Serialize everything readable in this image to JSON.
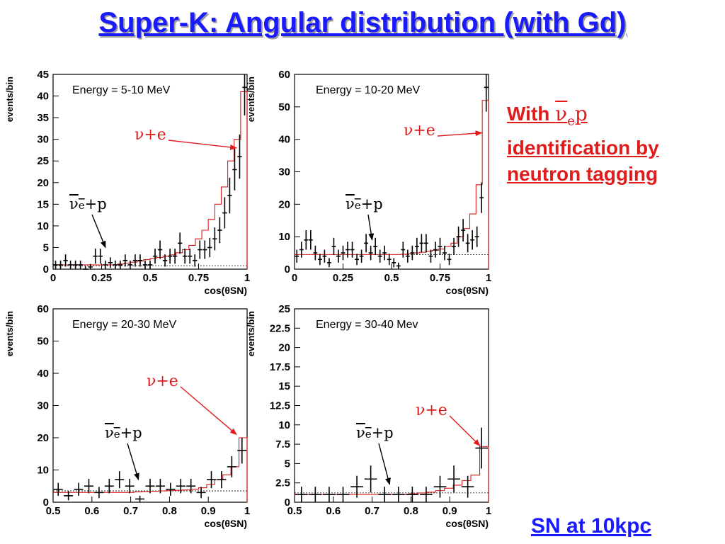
{
  "title": "Super-K: Angular distribution (with Gd)",
  "side_note": {
    "with_label": "With",
    "nu_symbol": "ν",
    "nu_subscript": "e",
    "nu_suffix": "p",
    "line2": "identification by",
    "line3": "neutron tagging"
  },
  "sn_note": "SN at 10kpc",
  "colors": {
    "title": "#1a1aff",
    "accent": "#e01b1b",
    "model": "#e01b1b",
    "data": "#000000"
  },
  "chart_data": [
    {
      "type": "histogram",
      "panel": "top-left",
      "energy_label": "Energy = 5-10 MeV",
      "xlabel": "cos(θSN)",
      "ylabel": "events/bin",
      "xlim": [
        0,
        1
      ],
      "ylim": [
        0,
        45
      ],
      "xticks": [
        "0",
        "0.25",
        "0.5",
        "0.75",
        "1"
      ],
      "xtick_values": [
        0,
        0.25,
        0.5,
        0.75,
        1
      ],
      "yticks": [
        "0",
        "5",
        "10",
        "15",
        "20",
        "25",
        "30",
        "35",
        "40",
        "45"
      ],
      "ytick_values": [
        0,
        5,
        10,
        15,
        20,
        25,
        30,
        35,
        40,
        45
      ],
      "baseline": 0.8,
      "ann_ve": {
        "text": "ν+e",
        "xv": 0.96,
        "yv": 28
      },
      "ann_vp": {
        "text": "+p",
        "xv": 0.27,
        "yv": 5
      },
      "hist": [
        1,
        1,
        1,
        1,
        1,
        1,
        1,
        1,
        1,
        1,
        1.2,
        1.4,
        1.6,
        1.9,
        2.2,
        2.5,
        2.7,
        3,
        3.3,
        3.8,
        4.5,
        5.5,
        7,
        9,
        11.5,
        15,
        19,
        25,
        30,
        41
      ],
      "points": [
        1,
        1,
        2,
        1,
        1,
        1,
        0,
        0.5,
        3,
        3,
        1,
        1.5,
        1,
        1,
        2,
        1,
        2,
        2,
        1,
        1,
        3,
        4.5,
        2,
        3,
        3,
        6,
        3,
        3,
        2,
        4.5,
        4.5,
        5,
        7,
        9,
        13,
        17,
        23,
        26,
        42
      ]
    },
    {
      "type": "histogram",
      "panel": "top-right",
      "energy_label": "Energy = 10-20 MeV",
      "xlabel": "cos(θSN)",
      "ylabel": "events/bin",
      "xlim": [
        0,
        1
      ],
      "ylim": [
        0,
        60
      ],
      "xticks": [
        "0",
        "0.25",
        "0.5",
        "0.75",
        "1"
      ],
      "xtick_values": [
        0,
        0.25,
        0.5,
        0.75,
        1
      ],
      "yticks": [
        "0",
        "10",
        "20",
        "30",
        "40",
        "50",
        "60"
      ],
      "ytick_values": [
        0,
        10,
        20,
        30,
        40,
        50,
        60
      ],
      "baseline": 4.5,
      "ann_ve": {
        "text": "ν+e",
        "xv": 0.98,
        "yv": 42
      },
      "ann_vp": {
        "text": "+p",
        "xv": 0.4,
        "yv": 9
      },
      "hist": [
        4.5,
        4.5,
        4.5,
        4.5,
        4.5,
        4.5,
        4.5,
        4.5,
        4.5,
        4.5,
        4.5,
        4.5,
        4.5,
        4.5,
        4.5,
        4.5,
        4.5,
        4.6,
        4.8,
        5,
        5.2,
        5.5,
        5.8,
        6.2,
        7,
        8,
        10,
        12.5,
        17,
        26,
        52
      ],
      "points": [
        4,
        6,
        9,
        9,
        5,
        3,
        4,
        2,
        7,
        4,
        5,
        6,
        6,
        3,
        4,
        8,
        5,
        7,
        4,
        5,
        3,
        2,
        1,
        6,
        4,
        5,
        7,
        8,
        8,
        4,
        6,
        7,
        5,
        3,
        7,
        10,
        12,
        8,
        9,
        10,
        22,
        56
      ]
    },
    {
      "type": "histogram",
      "panel": "bottom-left",
      "energy_label": "Energy = 20-30 MeV",
      "xlabel": "cos(θSN)",
      "ylabel": "events/bin",
      "xlim": [
        0.5,
        1
      ],
      "ylim": [
        0,
        60
      ],
      "xticks": [
        "0.5",
        "0.6",
        "0.7",
        "0.8",
        "0.9",
        "1"
      ],
      "xtick_values": [
        0.5,
        0.6,
        0.7,
        0.8,
        0.9,
        1
      ],
      "yticks": [
        "0",
        "10",
        "20",
        "30",
        "40",
        "50",
        "60"
      ],
      "ytick_values": [
        0,
        10,
        20,
        30,
        40,
        50,
        60
      ],
      "baseline": 3.5,
      "ann_ve": {
        "text": "ν+e",
        "xv": 0.98,
        "yv": 21
      },
      "ann_vp": {
        "text": "+p",
        "xv": 0.72,
        "yv": 7
      },
      "hist": [
        3,
        3,
        3,
        3,
        3,
        3,
        3,
        3,
        3,
        3,
        3.2,
        3.3,
        3.4,
        3.5,
        3.6,
        3.7,
        3.8,
        4,
        4.5,
        5.5,
        7,
        8.5,
        11,
        20
      ],
      "points": [
        4,
        2,
        4,
        5,
        3,
        5,
        7,
        5,
        1,
        5,
        5,
        4,
        5,
        5,
        3,
        7,
        7,
        11,
        16
      ]
    },
    {
      "type": "histogram",
      "panel": "bottom-right",
      "energy_label": "Energy = 30-40 Mev",
      "xlabel": "cos(θSN)",
      "ylabel": "events/bin",
      "xlim": [
        0.5,
        1
      ],
      "ylim": [
        0,
        25
      ],
      "xticks": [
        "0.5",
        "0.6",
        "0.7",
        "0.8",
        "0.9",
        "1"
      ],
      "xtick_values": [
        0.5,
        0.6,
        0.7,
        0.8,
        0.9,
        1
      ],
      "yticks": [
        "0",
        "2.5",
        "5",
        "7.5",
        "10",
        "12.5",
        "15",
        "17.5",
        "20",
        "22.5",
        "25"
      ],
      "ytick_values": [
        0,
        2.5,
        5,
        7.5,
        10,
        12.5,
        15,
        17.5,
        20,
        22.5,
        25
      ],
      "baseline": 1.2,
      "ann_ve": {
        "text": "ν+e",
        "xv": 0.985,
        "yv": 7.3
      },
      "ann_vp": {
        "text": "+p",
        "xv": 0.745,
        "yv": 2.3
      },
      "hist": [
        1,
        1,
        1,
        1,
        1,
        1,
        1,
        1,
        1,
        1,
        1,
        1,
        1,
        1.1,
        1.2,
        1.3,
        1.5,
        1.8,
        2.2,
        2.8,
        3.5,
        7.2
      ],
      "points": [
        1,
        1,
        1,
        1,
        2,
        3,
        1,
        1,
        1,
        1,
        2,
        3,
        2,
        7
      ]
    }
  ]
}
